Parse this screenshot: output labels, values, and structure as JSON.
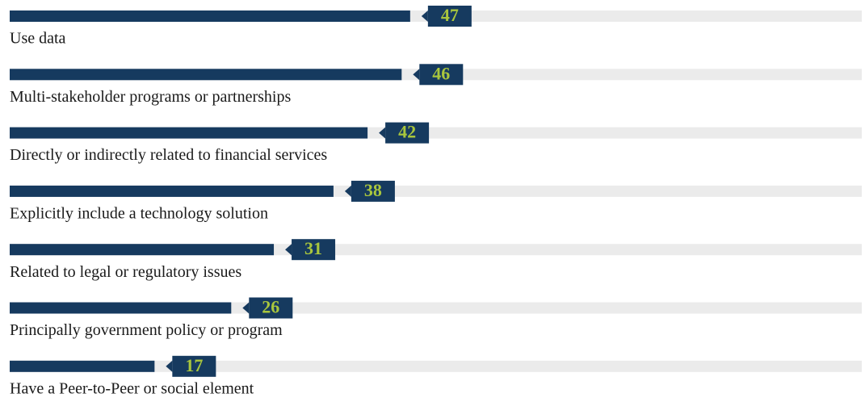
{
  "chart_data": {
    "type": "hbar",
    "categories": [
      "Use data",
      "Multi-stakeholder programs or partnerships",
      "Directly or indirectly related to financial services",
      "Explicitly include a technology solution",
      "Related to legal or regulatory issues",
      "Principally government policy or program",
      "Have a Peer-to-Peer or social element"
    ],
    "values": [
      47,
      46,
      42,
      38,
      31,
      26,
      17
    ],
    "color": "#163a5f",
    "xlim": [
      0,
      100
    ]
  }
}
